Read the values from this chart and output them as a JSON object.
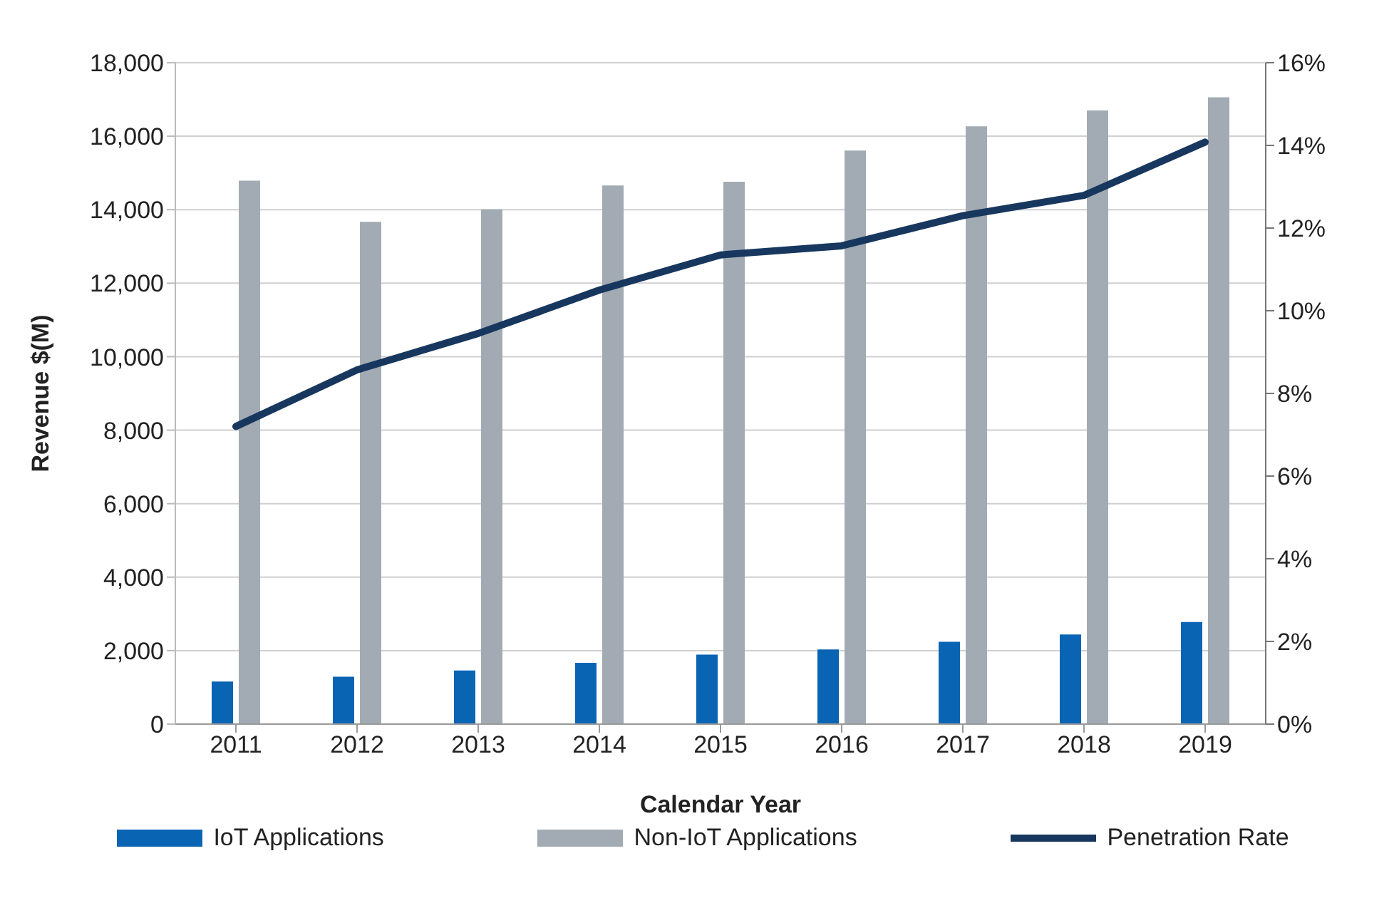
{
  "chart_data": {
    "type": "bar",
    "xlabel": "Calendar Year",
    "ylabel": "Revenue $(M)",
    "categories": [
      "2011",
      "2012",
      "2013",
      "2014",
      "2015",
      "2016",
      "2017",
      "2018",
      "2019"
    ],
    "series": [
      {
        "name": "IoT Applications",
        "color": "#0a64b4",
        "values": [
          1160,
          1290,
          1460,
          1670,
          1890,
          2030,
          2240,
          2440,
          2780
        ]
      },
      {
        "name": "Non-IoT Applications",
        "color": "#a2abb3",
        "values": [
          14790,
          13670,
          14010,
          14660,
          14760,
          15610,
          16270,
          16700,
          17060
        ]
      },
      {
        "name": "Penetration Rate",
        "type": "line",
        "axis": "y2",
        "color": "#17375e",
        "values": [
          7.2,
          8.57,
          9.45,
          10.5,
          11.35,
          11.57,
          12.3,
          12.79,
          14.08
        ]
      }
    ],
    "ylim": [
      0,
      18000
    ],
    "yticks": [
      {
        "value": 0,
        "label": "0"
      },
      {
        "value": 2000,
        "label": "2,000"
      },
      {
        "value": 4000,
        "label": "4,000"
      },
      {
        "value": 6000,
        "label": "6,000"
      },
      {
        "value": 8000,
        "label": "8,000"
      },
      {
        "value": 10000,
        "label": "10,000"
      },
      {
        "value": 12000,
        "label": "12,000"
      },
      {
        "value": 14000,
        "label": "14,000"
      },
      {
        "value": 16000,
        "label": "16,000"
      },
      {
        "value": 18000,
        "label": "18,000"
      }
    ],
    "y2lim": [
      0,
      16
    ],
    "y2ticks": [
      {
        "value": 0,
        "label": "0%"
      },
      {
        "value": 2,
        "label": "2%"
      },
      {
        "value": 4,
        "label": "4%"
      },
      {
        "value": 6,
        "label": "6%"
      },
      {
        "value": 8,
        "label": "8%"
      },
      {
        "value": 10,
        "label": "10%"
      },
      {
        "value": 12,
        "label": "12%"
      },
      {
        "value": 14,
        "label": "14%"
      },
      {
        "value": 16,
        "label": "16%"
      }
    ],
    "grid": "y",
    "legend": "bottom",
    "marker": "none",
    "line_style": "solid"
  }
}
